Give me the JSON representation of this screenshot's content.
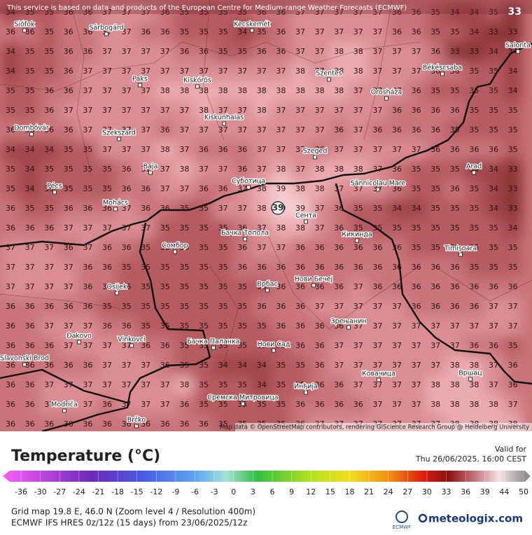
{
  "header": {
    "notice": "This service is based on data and products of the European Centre for Medium-range Weather Forecasts (ECMWF)",
    "corner_value": 33
  },
  "map": {
    "temps": [
      [
        34,
        35,
        35,
        36,
        36,
        37,
        37,
        37,
        36,
        35,
        35,
        35,
        35,
        36,
        36,
        37,
        37,
        37,
        37,
        37,
        36,
        36,
        35,
        34,
        34,
        35,
        33
      ],
      [
        36,
        36,
        35,
        36,
        36,
        37,
        37,
        36,
        36,
        35,
        35,
        35,
        34,
        35,
        36,
        37,
        37,
        37,
        37,
        37,
        36,
        36,
        35,
        35,
        34,
        33,
        33
      ],
      [
        34,
        35,
        35,
        36,
        36,
        37,
        37,
        37,
        37,
        36,
        36,
        35,
        35,
        36,
        36,
        37,
        37,
        38,
        38,
        37,
        37,
        37,
        36,
        33,
        33,
        34,
        34
      ],
      [
        34,
        35,
        35,
        36,
        37,
        37,
        37,
        37,
        37,
        37,
        37,
        37,
        37,
        37,
        37,
        38,
        37,
        38,
        38,
        37,
        37,
        37,
        36,
        36,
        35,
        35,
        34
      ],
      [
        35,
        35,
        36,
        36,
        37,
        37,
        37,
        37,
        38,
        38,
        38,
        38,
        38,
        38,
        38,
        38,
        38,
        38,
        37,
        37,
        37,
        36,
        35,
        35,
        35,
        35,
        34
      ],
      [
        35,
        35,
        36,
        37,
        37,
        37,
        37,
        37,
        37,
        37,
        38,
        37,
        37,
        38,
        37,
        37,
        37,
        37,
        37,
        37,
        36,
        36,
        36,
        36,
        35,
        35,
        35
      ],
      [
        36,
        36,
        36,
        36,
        37,
        37,
        37,
        37,
        36,
        37,
        37,
        37,
        37,
        37,
        37,
        37,
        37,
        36,
        37,
        36,
        36,
        36,
        36,
        35,
        35,
        35,
        35
      ],
      [
        34,
        34,
        34,
        35,
        35,
        37,
        37,
        37,
        38,
        37,
        36,
        36,
        36,
        37,
        37,
        37,
        36,
        37,
        37,
        37,
        37,
        37,
        36,
        36,
        36,
        36,
        35
      ],
      [
        35,
        34,
        35,
        35,
        35,
        35,
        36,
        37,
        37,
        38,
        37,
        37,
        36,
        37,
        38,
        37,
        38,
        38,
        38,
        37,
        36,
        35,
        35,
        35,
        34,
        34,
        33
      ],
      [
        35,
        34,
        35,
        35,
        35,
        35,
        36,
        36,
        37,
        37,
        36,
        36,
        37,
        38,
        39,
        38,
        38,
        37,
        37,
        37,
        36,
        35,
        35,
        36,
        35,
        34,
        33
      ],
      [
        36,
        35,
        35,
        36,
        36,
        36,
        37,
        36,
        36,
        35,
        35,
        37,
        37,
        38,
        39,
        39,
        37,
        36,
        35,
        35,
        34,
        34,
        35,
        35,
        35,
        34,
        33
      ],
      [
        36,
        36,
        36,
        37,
        37,
        37,
        37,
        37,
        35,
        35,
        35,
        35,
        36,
        37,
        38,
        38,
        37,
        36,
        35,
        35,
        35,
        35,
        35,
        35,
        35,
        35,
        34
      ],
      [
        37,
        37,
        37,
        36,
        37,
        36,
        36,
        35,
        35,
        35,
        35,
        35,
        36,
        37,
        37,
        36,
        36,
        36,
        36,
        36,
        36,
        35,
        35,
        35,
        35,
        35,
        35
      ],
      [
        37,
        37,
        37,
        37,
        36,
        36,
        35,
        35,
        35,
        35,
        35,
        35,
        36,
        36,
        36,
        36,
        36,
        36,
        36,
        36,
        36,
        36,
        36,
        36,
        35,
        35,
        35
      ],
      [
        37,
        37,
        37,
        37,
        36,
        36,
        35,
        35,
        35,
        35,
        35,
        35,
        35,
        35,
        36,
        36,
        36,
        36,
        37,
        36,
        36,
        36,
        36,
        36,
        36,
        36,
        36
      ],
      [
        36,
        36,
        36,
        36,
        36,
        35,
        35,
        35,
        35,
        35,
        35,
        35,
        35,
        36,
        36,
        36,
        37,
        37,
        37,
        37,
        37,
        36,
        36,
        36,
        36,
        37,
        37
      ],
      [
        36,
        36,
        37,
        37,
        37,
        36,
        36,
        35,
        35,
        35,
        35,
        35,
        35,
        35,
        36,
        36,
        36,
        36,
        37,
        37,
        37,
        37,
        37,
        37,
        37,
        37,
        37
      ],
      [
        36,
        36,
        36,
        37,
        37,
        37,
        37,
        36,
        36,
        35,
        35,
        35,
        35,
        35,
        35,
        36,
        36,
        37,
        37,
        37,
        37,
        37,
        37,
        37,
        36,
        36,
        35
      ],
      [
        36,
        36,
        36,
        36,
        36,
        37,
        37,
        37,
        36,
        35,
        35,
        34,
        34,
        34,
        35,
        35,
        36,
        37,
        37,
        37,
        37,
        37,
        37,
        38,
        38,
        37,
        36
      ],
      [
        36,
        36,
        37,
        37,
        37,
        37,
        37,
        37,
        37,
        38,
        35,
        35,
        35,
        34,
        35,
        35,
        36,
        36,
        37,
        37,
        37,
        37,
        38,
        38,
        38,
        37,
        36
      ],
      [
        36,
        36,
        37,
        37,
        37,
        36,
        37,
        37,
        37,
        36,
        35,
        35,
        35,
        35,
        35,
        36,
        36,
        36,
        36,
        37,
        37,
        37,
        38,
        38,
        38,
        38,
        37
      ],
      [
        36,
        36,
        36,
        36,
        36,
        36,
        36,
        36,
        36,
        36,
        36,
        35,
        35,
        35,
        35,
        36,
        37,
        37,
        37,
        37,
        37,
        37,
        37,
        38,
        38,
        38,
        38
      ]
    ],
    "cities": [
      "Siófok",
      "Sárbogárd",
      "Kecskemét",
      "Paks",
      "Kiskőrös",
      "Szentes",
      "Békéscsaba",
      "Orosháza",
      "Salonta",
      "Kiskunhalas",
      "Dombóvár",
      "Szekszárd",
      "Szeged",
      "Baja",
      "Arad",
      "Pécs",
      "Суботица",
      "Sânnicolau Mare",
      "Mohács",
      "Сента",
      "Бачка Топола",
      "Кикинда",
      "Сомбор",
      "Timișoara",
      "Врбас",
      "Нови Бечеј",
      "Osijek",
      "Зрењанин",
      "Đakovo",
      "Vinkovci",
      "Бачка Паланка",
      "Нови Сад",
      "Slavonski Brod",
      "Ковачица",
      "Вршац",
      "Инђија",
      "Сремска Митровица",
      "Modriča",
      "Brčko"
    ],
    "marker_value": 39,
    "attribution": "Map data © OpenStreetMap contributors, rendering GIScience Research Group @ Heidelberg University"
  },
  "legend": {
    "title": "Temperature (°C)",
    "valid_label": "Valid for",
    "valid_time": "Thu 26/06/2025, 16:00 CEST",
    "ticks": [
      -36,
      -30,
      -27,
      -24,
      -21,
      -18,
      -15,
      -12,
      -9,
      -6,
      -3,
      0,
      3,
      6,
      9,
      12,
      15,
      18,
      21,
      24,
      27,
      30,
      33,
      36,
      39,
      44,
      50
    ]
  },
  "footer": {
    "grid_info": "Grid map 19.8 E, 46.0 N (Zoom level 4 / Resolution 400m)",
    "model_info": "ECMWF IFS HRES 0z/12z (15 days) from 23/06/2025/12z",
    "ecmwf": "ECMWF",
    "brand": "meteologix.com"
  }
}
